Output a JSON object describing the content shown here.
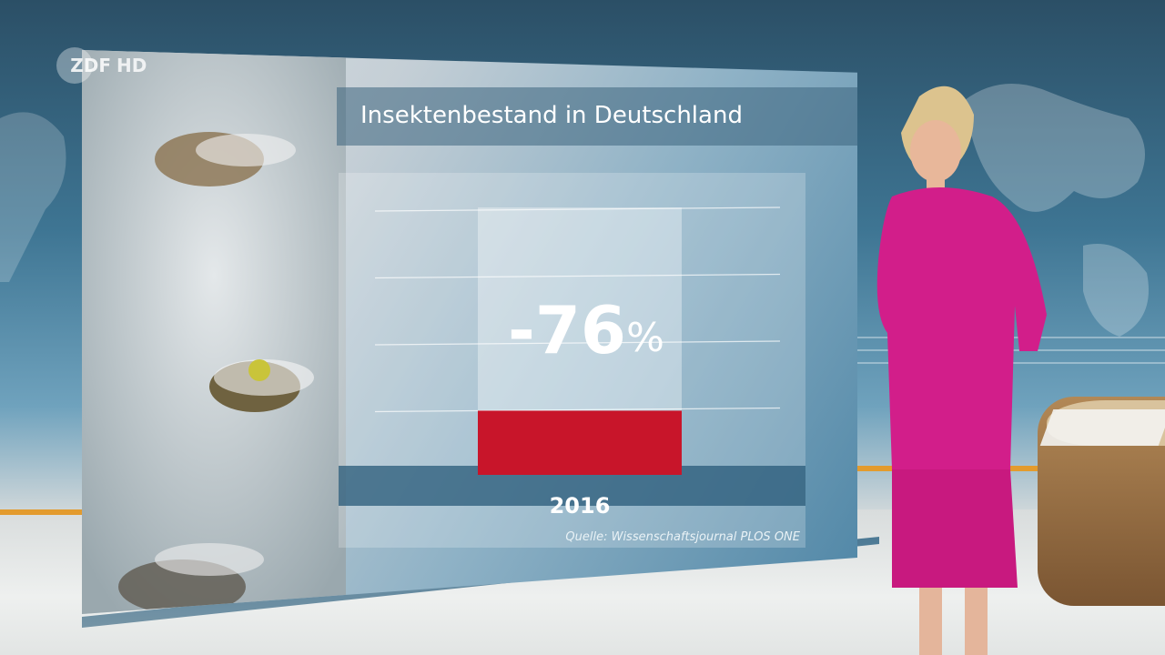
{
  "broadcast": {
    "logo_text": "ZDF",
    "logo_suffix": "HD"
  },
  "chart_data": {
    "type": "bar",
    "title": "Insektenbestand in Deutschland",
    "categories": [
      "2016"
    ],
    "values": [
      24
    ],
    "reference_value": 100,
    "annotation_value": "-76",
    "annotation_unit": "%",
    "ylim": [
      0,
      100
    ],
    "grid": true,
    "source": "Quelle: Wissenschaftsjournal PLOS ONE",
    "colors": {
      "bar": "#c8152a",
      "reference": "#ffffff"
    }
  }
}
